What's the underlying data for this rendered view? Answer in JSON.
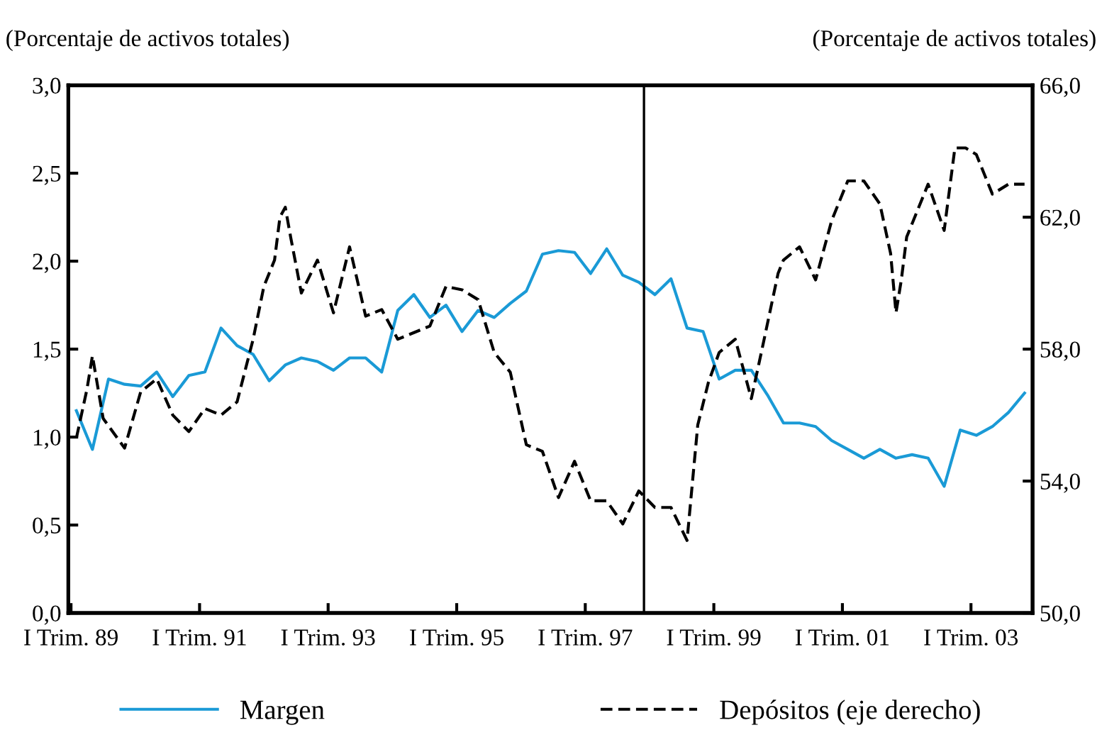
{
  "chart_data": {
    "type": "line",
    "ylabel": "(Porcentaje de activos totales)",
    "y2label": "(Porcentaje de activos totales)",
    "categories": [
      "I Trim. 89",
      null,
      null,
      null,
      null,
      null,
      null,
      null,
      null,
      null,
      null,
      null,
      null,
      null,
      null,
      null,
      null,
      null,
      null,
      null,
      null,
      null,
      null,
      null,
      "I Trim. 91",
      null,
      null,
      null,
      null,
      null,
      null,
      null,
      null,
      null,
      null,
      null,
      null,
      null,
      null,
      null,
      null,
      null,
      null,
      null,
      null,
      null,
      null,
      null,
      "I Trim. 93",
      null,
      null,
      null,
      null,
      null,
      null,
      null,
      null,
      null,
      null,
      null,
      null,
      null,
      null,
      null,
      null,
      null,
      null,
      null,
      null,
      null,
      null,
      null,
      "I Trim. 95",
      null,
      null,
      null,
      null,
      null,
      null,
      null,
      null,
      null,
      null,
      null,
      null,
      null,
      null,
      null,
      null,
      null,
      null,
      null,
      null,
      null,
      null,
      null,
      "I Trim. 97",
      null,
      null,
      null,
      null,
      null,
      null,
      null,
      null,
      null,
      null,
      null,
      null,
      null,
      null,
      null,
      null,
      null,
      null,
      null,
      null,
      null,
      null,
      null,
      "I Trim. 99",
      null,
      null,
      null,
      null,
      null,
      null,
      null,
      null,
      null,
      null,
      null,
      null,
      null,
      null,
      null,
      null,
      null,
      null,
      null,
      null,
      null,
      null,
      null,
      "I Trim. 01",
      null,
      null,
      null,
      null,
      null,
      null,
      null,
      null,
      null,
      null,
      null,
      null,
      null,
      null,
      null,
      null,
      null,
      null,
      null,
      null,
      null,
      null,
      null,
      "I Trim. 03",
      null,
      null,
      null,
      null,
      null,
      null,
      null,
      null,
      null,
      null,
      null
    ],
    "ylim": [
      0,
      3
    ],
    "yticks": [
      {
        "value": 0,
        "label": "0,0"
      },
      {
        "value": 0.5,
        "label": "0,5"
      },
      {
        "value": 1,
        "label": "1,0"
      },
      {
        "value": 1.5,
        "label": "1,5"
      },
      {
        "value": 2,
        "label": "2,0"
      },
      {
        "value": 2.5,
        "label": "2,5"
      },
      {
        "value": 3,
        "label": "3,0"
      }
    ],
    "y2lim": [
      50,
      66
    ],
    "y2ticks": [
      {
        "value": 50,
        "label": "50,0"
      },
      {
        "value": 54,
        "label": "54,0"
      },
      {
        "value": 58,
        "label": "58,0"
      },
      {
        "value": 62,
        "label": "62,0"
      },
      {
        "value": 66,
        "label": "66,0"
      }
    ],
    "grid": false,
    "legend": "bottom",
    "series": [
      {
        "name": "Margen",
        "color": "#1a9ad6",
        "line_style": "solid",
        "values": [
          null,
          1.15,
          null,
          null,
          0.93,
          null,
          null,
          1.33,
          null,
          null,
          1.3,
          null,
          null,
          1.29,
          null,
          null,
          1.37,
          null,
          null,
          1.23,
          null,
          null,
          1.35,
          null,
          null,
          1.37,
          null,
          null,
          1.62,
          null,
          null,
          1.52,
          null,
          null,
          1.47,
          null,
          null,
          1.32,
          null,
          null,
          1.41,
          null,
          null,
          1.45,
          null,
          null,
          1.43,
          null,
          null,
          1.38,
          null,
          null,
          1.45,
          null,
          null,
          1.45,
          null,
          null,
          1.37,
          null,
          null,
          1.72,
          null,
          null,
          1.81,
          null,
          null,
          1.68,
          null,
          null,
          1.75,
          null,
          null,
          1.6,
          null,
          null,
          1.72,
          null,
          null,
          1.68,
          null,
          null,
          1.76,
          null,
          null,
          1.83,
          null,
          null,
          2.04,
          null,
          null,
          2.06,
          null,
          null,
          2.05,
          null,
          null,
          1.93,
          null,
          null,
          2.07,
          null,
          null,
          1.92,
          null,
          null,
          1.88,
          null,
          null,
          1.81,
          null,
          null,
          1.9,
          null,
          null,
          1.62,
          null,
          null,
          1.6,
          null,
          null,
          1.33,
          null,
          null,
          1.38,
          null,
          null,
          1.38,
          null,
          null,
          1.24,
          null,
          null,
          1.08,
          null,
          null,
          1.08,
          null,
          null,
          1.06,
          null,
          null,
          0.98,
          null,
          null,
          0.93,
          null,
          null,
          0.88,
          null,
          null,
          0.93,
          null,
          null,
          0.88,
          null,
          null,
          0.9,
          null,
          null,
          0.88,
          null,
          null,
          0.72,
          null,
          null,
          1.04,
          null,
          null,
          1.01,
          null,
          null,
          1.06,
          null,
          null,
          1.14,
          null,
          null,
          1.25,
          null
        ]
      },
      {
        "name": "Depósitos (eje derecho)",
        "color": "#000000",
        "axis": "y2",
        "line_style": "dashed",
        "values": [
          null,
          55.3,
          null,
          56.8,
          57.8,
          null,
          55.9,
          null,
          null,
          null,
          55.0,
          null,
          null,
          56.7,
          null,
          null,
          57.1,
          null,
          null,
          56.0,
          null,
          null,
          55.5,
          null,
          null,
          56.2,
          null,
          null,
          56.0,
          null,
          null,
          56.4,
          null,
          null,
          58.3,
          null,
          59.9,
          null,
          60.7,
          62.0,
          62.3,
          61.4,
          null,
          59.7,
          null,
          null,
          60.7,
          null,
          null,
          59.1,
          null,
          null,
          61.1,
          null,
          null,
          59.0,
          null,
          null,
          59.2,
          null,
          null,
          58.3,
          null,
          null,
          null,
          null,
          null,
          58.7,
          null,
          null,
          59.9,
          null,
          null,
          59.8,
          null,
          null,
          59.5,
          null,
          null,
          57.9,
          null,
          null,
          57.3,
          null,
          null,
          55.1,
          null,
          null,
          54.9,
          null,
          null,
          53.5,
          null,
          null,
          54.6,
          null,
          null,
          53.4,
          null,
          null,
          53.4,
          null,
          null,
          52.7,
          null,
          null,
          53.7,
          null,
          null,
          53.2,
          null,
          null,
          53.2,
          null,
          null,
          52.2,
          null,
          55.7,
          null,
          57.0,
          null,
          57.9,
          null,
          null,
          58.3,
          null,
          null,
          56.5,
          null,
          58.0,
          null,
          null,
          60.3,
          60.7,
          null,
          null,
          61.1,
          null,
          null,
          60.1,
          null,
          null,
          61.9,
          null,
          null,
          63.1,
          null,
          null,
          63.1,
          null,
          null,
          62.4,
          null,
          60.9,
          59.1,
          60.1,
          61.4,
          null,
          62.2,
          null,
          63.0,
          null,
          null,
          61.6,
          null,
          64.1,
          null,
          64.1,
          null,
          63.9,
          null,
          null,
          62.7,
          null,
          null,
          63.0,
          null,
          null,
          63.0,
          null
        ]
      }
    ]
  }
}
